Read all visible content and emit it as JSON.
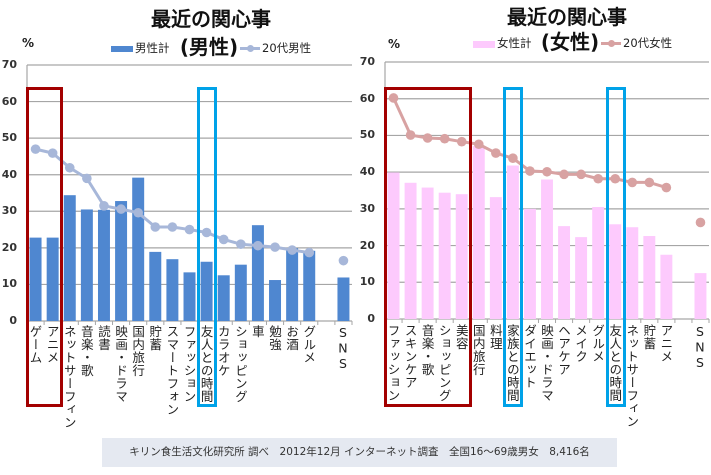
{
  "footer": {
    "source_note": "キリン食生活文化研究所 調べ　2012年12月 インターネット調査　全国16～69歳男女　8,416名"
  },
  "chart_data": [
    {
      "type": "bar",
      "title": "最近の関心事",
      "subtitle": "(男性)",
      "xlabel": "",
      "ylabel": "%",
      "ylim": [
        0,
        70
      ],
      "yticks": [
        0,
        10,
        20,
        30,
        40,
        50,
        60,
        70
      ],
      "grid": true,
      "legend_position": "top",
      "categories": [
        "ゲーム",
        "アニメ",
        "ネットサーフィン",
        "音楽・歌",
        "読書",
        "映画・ドラマ",
        "国内旅行",
        "貯蓄",
        "スマートフォン",
        "ファッション",
        "友人との時間",
        "カラオケ",
        "ショッピング",
        "車",
        "勉強",
        "お酒",
        "グルメ",
        "",
        "SNS"
      ],
      "series": [
        {
          "name": "男性計",
          "type": "bar",
          "color": "#4f87d0",
          "values": [
            22.8,
            22.8,
            34.4,
            30.5,
            30.4,
            32.8,
            39.2,
            18.9,
            16.9,
            13.3,
            16.2,
            12.5,
            15.4,
            26.2,
            11.2,
            19.9,
            19.2,
            null,
            11.9
          ]
        },
        {
          "name": "20代男性",
          "type": "line",
          "color": "#a7b7d9",
          "values": [
            47.0,
            45.9,
            41.9,
            39.0,
            31.5,
            30.6,
            29.6,
            25.7,
            25.7,
            25.0,
            24.2,
            22.3,
            21.0,
            20.6,
            20.2,
            19.4,
            18.7,
            null,
            16.5
          ]
        }
      ],
      "annotations": [
        {
          "type": "box",
          "categories": [
            "ゲーム",
            "アニメ"
          ],
          "color": "#a30000"
        },
        {
          "type": "box",
          "categories": [
            "友人との時間"
          ],
          "color": "#00a2e8"
        }
      ]
    },
    {
      "type": "bar",
      "title": "最近の関心事",
      "subtitle": "(女性)",
      "xlabel": "",
      "ylabel": "%",
      "ylim": [
        0,
        70
      ],
      "yticks": [
        0,
        10,
        20,
        30,
        40,
        50,
        60,
        70
      ],
      "grid": true,
      "legend_position": "top",
      "categories": [
        "ファッション",
        "スキンケア",
        "音楽・歌",
        "ショッピング",
        "美容",
        "国内旅行",
        "料理",
        "家族との時間",
        "ダイエット",
        "映画・ドラマ",
        "ヘアケア",
        "メイク",
        "グルメ",
        "友人との時間",
        "ネットサーフィン",
        "貯蓄",
        "アニメ",
        "",
        "SNS"
      ],
      "series": [
        {
          "name": "女性計",
          "type": "bar",
          "color": "#fdcafd",
          "values": [
            39.9,
            37.1,
            35.8,
            34.4,
            34.0,
            47.1,
            33.2,
            41.8,
            30.0,
            38.0,
            25.3,
            22.3,
            30.5,
            25.8,
            25.0,
            22.6,
            17.5,
            null,
            12.5
          ]
        },
        {
          "name": "20代女性",
          "type": "line",
          "color": "#d8a2a2",
          "values": [
            60.2,
            50.1,
            49.3,
            49.1,
            48.3,
            47.6,
            45.2,
            43.8,
            40.3,
            40.1,
            39.4,
            39.4,
            38.2,
            38.2,
            37.2,
            37.2,
            35.8,
            null,
            26.3
          ]
        }
      ],
      "annotations": [
        {
          "type": "box",
          "categories": [
            "ファッション",
            "スキンケア",
            "音楽・歌",
            "ショッピング",
            "美容"
          ],
          "color": "#a30000"
        },
        {
          "type": "box",
          "categories": [
            "家族との時間"
          ],
          "color": "#00a2e8"
        },
        {
          "type": "box",
          "categories": [
            "友人との時間"
          ],
          "color": "#00a2e8"
        }
      ]
    }
  ]
}
